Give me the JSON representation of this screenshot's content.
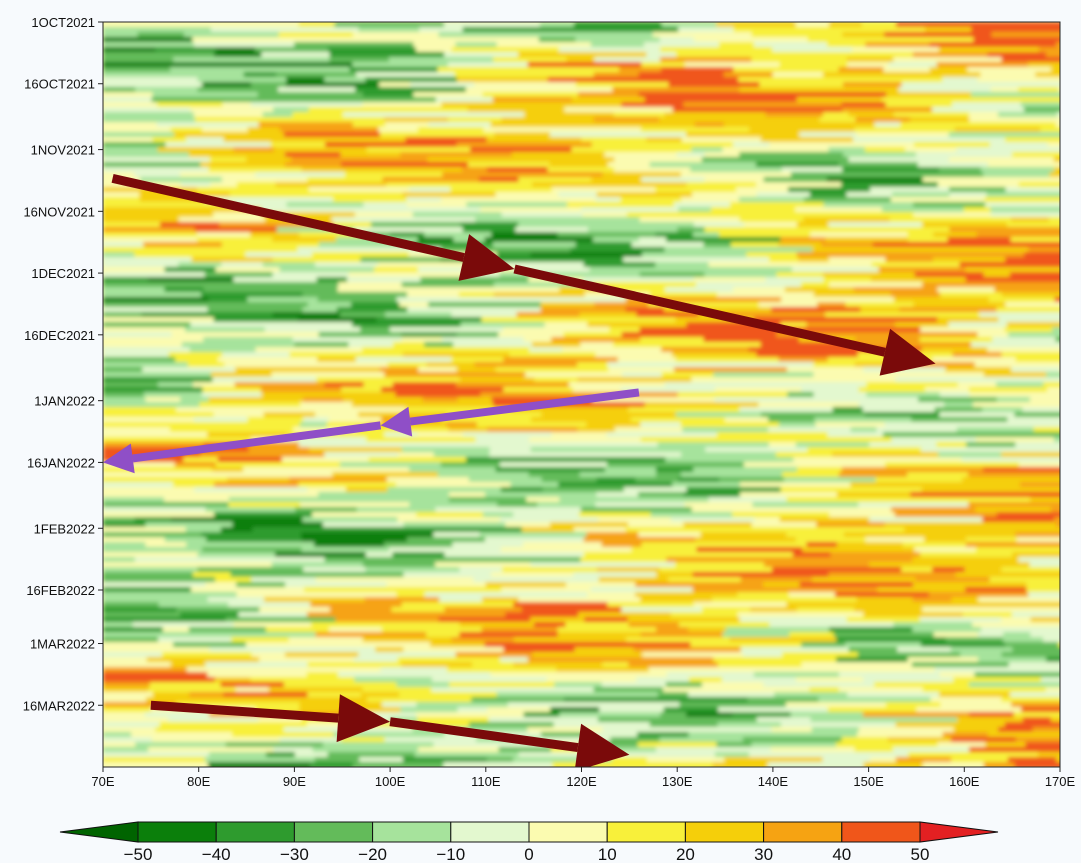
{
  "chart_data": {
    "type": "heatmap",
    "title": "",
    "xlabel": "",
    "ylabel": "",
    "x_ticks": [
      "70E",
      "80E",
      "90E",
      "100E",
      "110E",
      "120E",
      "130E",
      "140E",
      "150E",
      "160E",
      "170E"
    ],
    "x_tick_values": [
      70,
      80,
      90,
      100,
      110,
      120,
      130,
      140,
      150,
      160,
      170
    ],
    "xlim": [
      70,
      170
    ],
    "y_ticks": [
      "1OCT2021",
      "16OCT2021",
      "1NOV2021",
      "16NOV2021",
      "1DEC2021",
      "16DEC2021",
      "1JAN2022",
      "16JAN2022",
      "1FEB2022",
      "16FEB2022",
      "1MAR2022",
      "16MAR2022"
    ],
    "y_tick_values": [
      "2021-10-01",
      "2021-10-16",
      "2021-11-01",
      "2021-11-16",
      "2021-12-01",
      "2021-12-16",
      "2022-01-01",
      "2022-01-16",
      "2022-02-01",
      "2022-02-16",
      "2022-03-01",
      "2022-03-16"
    ],
    "ylim": [
      "2021-10-01",
      "2022-03-31"
    ],
    "colorbar": {
      "levels": [
        -50,
        -40,
        -30,
        -20,
        -10,
        0,
        10,
        20,
        30,
        40,
        50
      ],
      "labels": [
        "−50",
        "−40",
        "−30",
        "−20",
        "−10",
        "0",
        "10",
        "20",
        "30",
        "40",
        "50"
      ],
      "colors": [
        "#006400",
        "#0b7f0b",
        "#2e9b2e",
        "#63bb5a",
        "#a6e39c",
        "#e3f8cf",
        "#fbfbb0",
        "#f8f03a",
        "#f5cf0a",
        "#f6a312",
        "#f0561a",
        "#e32022"
      ]
    },
    "annotations": [
      {
        "type": "arrow",
        "color": "#7a0a0a",
        "from": {
          "lon": 71,
          "date": "2021-11-08"
        },
        "to": {
          "lon": 113,
          "date": "2021-11-30"
        }
      },
      {
        "type": "arrow",
        "color": "#7a0a0a",
        "from": {
          "lon": 113,
          "date": "2021-11-30"
        },
        "to": {
          "lon": 157,
          "date": "2021-12-23"
        }
      },
      {
        "type": "arrow",
        "color": "#8f4fc7",
        "from": {
          "lon": 126,
          "date": "2021-12-30"
        },
        "to": {
          "lon": 99,
          "date": "2022-01-07"
        }
      },
      {
        "type": "arrow",
        "color": "#8f4fc7",
        "from": {
          "lon": 99,
          "date": "2022-01-07"
        },
        "to": {
          "lon": 70,
          "date": "2022-01-16"
        }
      },
      {
        "type": "arrow",
        "color": "#7a0a0a",
        "from": {
          "lon": 75,
          "date": "2022-03-16"
        },
        "to": {
          "lon": 100,
          "date": "2022-03-20"
        }
      },
      {
        "type": "arrow",
        "color": "#7a0a0a",
        "from": {
          "lon": 100,
          "date": "2022-03-20"
        },
        "to": {
          "lon": 125,
          "date": "2022-03-28"
        }
      }
    ]
  }
}
